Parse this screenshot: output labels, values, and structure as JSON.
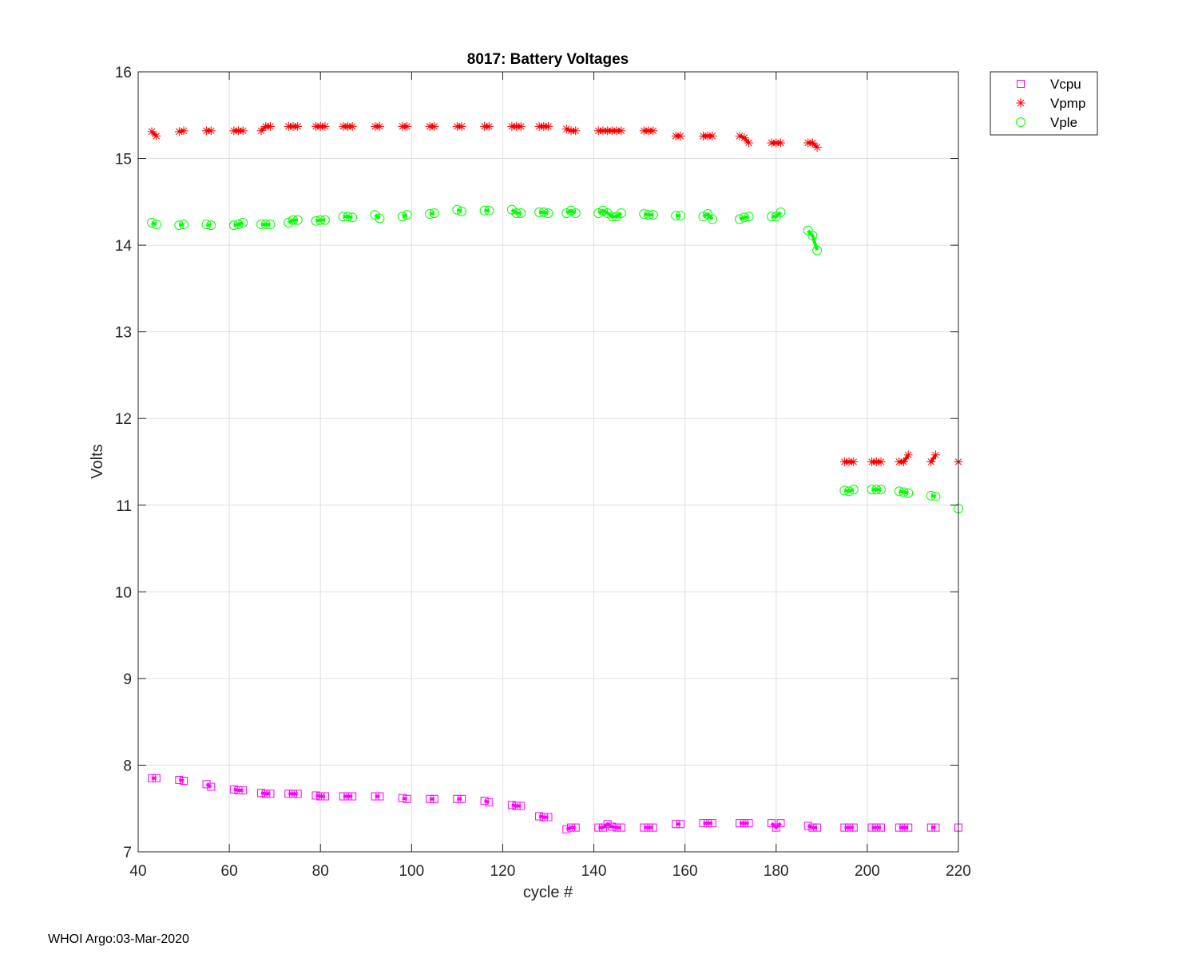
{
  "footer": "WHOI Argo:03-Mar-2020",
  "chart_data": {
    "type": "line",
    "title": "8017: Battery Voltages",
    "xlabel": "cycle #",
    "ylabel": "Volts",
    "xlim": [
      40,
      220
    ],
    "ylim": [
      7,
      16
    ],
    "xticks": [
      40,
      60,
      80,
      100,
      120,
      140,
      160,
      180,
      200,
      220
    ],
    "yticks": [
      7,
      8,
      9,
      10,
      11,
      12,
      13,
      14,
      15,
      16
    ],
    "grid": true,
    "legend_position": "outside-top-right",
    "series": [
      {
        "name": "Vcpu",
        "color": "#ff00ff",
        "marker": "square",
        "points": [
          [
            43,
            7.85
          ],
          [
            44,
            7.85
          ],
          [
            49,
            7.83
          ],
          [
            50,
            7.82
          ],
          [
            55,
            7.78
          ],
          [
            56,
            7.75
          ],
          [
            61,
            7.72
          ],
          [
            62,
            7.71
          ],
          [
            63,
            7.71
          ],
          [
            67,
            7.68
          ],
          [
            68,
            7.67
          ],
          [
            69,
            7.67
          ],
          [
            73,
            7.67
          ],
          [
            74,
            7.67
          ],
          [
            75,
            7.67
          ],
          [
            79,
            7.65
          ],
          [
            80,
            7.64
          ],
          [
            81,
            7.64
          ],
          [
            85,
            7.64
          ],
          [
            86,
            7.64
          ],
          [
            87,
            7.64
          ],
          [
            92,
            7.64
          ],
          [
            93,
            7.64
          ],
          [
            98,
            7.62
          ],
          [
            99,
            7.61
          ],
          [
            104,
            7.61
          ],
          [
            105,
            7.61
          ],
          [
            110,
            7.61
          ],
          [
            111,
            7.61
          ],
          [
            116,
            7.59
          ],
          [
            117,
            7.57
          ],
          [
            122,
            7.54
          ],
          [
            123,
            7.53
          ],
          [
            124,
            7.53
          ],
          [
            128,
            7.41
          ],
          [
            129,
            7.4
          ],
          [
            130,
            7.4
          ],
          [
            134,
            7.26
          ],
          [
            135,
            7.28
          ],
          [
            136,
            7.28
          ],
          [
            141,
            7.28
          ],
          [
            142,
            7.28
          ],
          [
            143,
            7.32
          ],
          [
            144,
            7.29
          ],
          [
            145,
            7.28
          ],
          [
            146,
            7.28
          ],
          [
            151,
            7.28
          ],
          [
            152,
            7.28
          ],
          [
            153,
            7.28
          ],
          [
            158,
            7.32
          ],
          [
            159,
            7.32
          ],
          [
            164,
            7.33
          ],
          [
            165,
            7.33
          ],
          [
            166,
            7.33
          ],
          [
            172,
            7.33
          ],
          [
            173,
            7.33
          ],
          [
            174,
            7.33
          ],
          [
            179,
            7.33
          ],
          [
            180,
            7.28
          ],
          [
            181,
            7.33
          ],
          [
            187,
            7.3
          ],
          [
            188,
            7.28
          ],
          [
            189,
            7.28
          ],
          [
            195,
            7.28
          ],
          [
            196,
            7.28
          ],
          [
            197,
            7.28
          ],
          [
            201,
            7.28
          ],
          [
            202,
            7.28
          ],
          [
            203,
            7.28
          ],
          [
            207,
            7.28
          ],
          [
            208,
            7.28
          ],
          [
            209,
            7.28
          ],
          [
            214,
            7.28
          ],
          [
            215,
            7.28
          ],
          [
            220,
            7.28
          ]
        ]
      },
      {
        "name": "Vpmp",
        "color": "#ff0000",
        "marker": "asterisk",
        "points": [
          [
            43,
            15.31
          ],
          [
            44,
            15.26
          ],
          [
            49,
            15.31
          ],
          [
            50,
            15.32
          ],
          [
            55,
            15.32
          ],
          [
            56,
            15.32
          ],
          [
            61,
            15.32
          ],
          [
            62,
            15.32
          ],
          [
            63,
            15.32
          ],
          [
            67,
            15.32
          ],
          [
            68,
            15.37
          ],
          [
            69,
            15.37
          ],
          [
            73,
            15.37
          ],
          [
            74,
            15.37
          ],
          [
            75,
            15.37
          ],
          [
            79,
            15.37
          ],
          [
            80,
            15.37
          ],
          [
            81,
            15.37
          ],
          [
            85,
            15.37
          ],
          [
            86,
            15.37
          ],
          [
            87,
            15.37
          ],
          [
            92,
            15.37
          ],
          [
            93,
            15.37
          ],
          [
            98,
            15.37
          ],
          [
            99,
            15.37
          ],
          [
            104,
            15.37
          ],
          [
            105,
            15.37
          ],
          [
            110,
            15.37
          ],
          [
            111,
            15.37
          ],
          [
            116,
            15.37
          ],
          [
            117,
            15.37
          ],
          [
            122,
            15.37
          ],
          [
            123,
            15.37
          ],
          [
            124,
            15.37
          ],
          [
            128,
            15.37
          ],
          [
            129,
            15.37
          ],
          [
            130,
            15.37
          ],
          [
            134,
            15.34
          ],
          [
            135,
            15.32
          ],
          [
            136,
            15.32
          ],
          [
            141,
            15.32
          ],
          [
            142,
            15.32
          ],
          [
            143,
            15.32
          ],
          [
            144,
            15.32
          ],
          [
            145,
            15.32
          ],
          [
            146,
            15.32
          ],
          [
            151,
            15.32
          ],
          [
            152,
            15.32
          ],
          [
            153,
            15.32
          ],
          [
            158,
            15.26
          ],
          [
            159,
            15.26
          ],
          [
            164,
            15.26
          ],
          [
            165,
            15.26
          ],
          [
            166,
            15.26
          ],
          [
            172,
            15.26
          ],
          [
            173,
            15.24
          ],
          [
            174,
            15.18
          ],
          [
            179,
            15.18
          ],
          [
            180,
            15.18
          ],
          [
            181,
            15.18
          ],
          [
            187,
            15.18
          ],
          [
            188,
            15.18
          ],
          [
            189,
            15.13
          ],
          [
            195,
            11.5
          ],
          [
            196,
            11.5
          ],
          [
            197,
            11.5
          ],
          [
            201,
            11.5
          ],
          [
            202,
            11.5
          ],
          [
            203,
            11.5
          ],
          [
            207,
            11.5
          ],
          [
            208,
            11.5
          ],
          [
            209,
            11.58
          ],
          [
            214,
            11.5
          ],
          [
            215,
            11.58
          ],
          [
            220,
            11.5
          ]
        ]
      },
      {
        "name": "Vple",
        "color": "#00ff00",
        "marker": "circle",
        "points": [
          [
            43,
            14.26
          ],
          [
            44,
            14.24
          ],
          [
            49,
            14.23
          ],
          [
            50,
            14.24
          ],
          [
            55,
            14.24
          ],
          [
            56,
            14.23
          ],
          [
            61,
            14.23
          ],
          [
            62,
            14.24
          ],
          [
            63,
            14.26
          ],
          [
            67,
            14.24
          ],
          [
            68,
            14.24
          ],
          [
            69,
            14.24
          ],
          [
            73,
            14.26
          ],
          [
            74,
            14.29
          ],
          [
            75,
            14.29
          ],
          [
            79,
            14.28
          ],
          [
            80,
            14.29
          ],
          [
            81,
            14.29
          ],
          [
            85,
            14.33
          ],
          [
            86,
            14.33
          ],
          [
            87,
            14.32
          ],
          [
            92,
            14.35
          ],
          [
            93,
            14.31
          ],
          [
            98,
            14.33
          ],
          [
            99,
            14.35
          ],
          [
            104,
            14.36
          ],
          [
            105,
            14.37
          ],
          [
            110,
            14.41
          ],
          [
            111,
            14.39
          ],
          [
            116,
            14.4
          ],
          [
            117,
            14.4
          ],
          [
            122,
            14.41
          ],
          [
            123,
            14.37
          ],
          [
            124,
            14.37
          ],
          [
            128,
            14.38
          ],
          [
            129,
            14.38
          ],
          [
            130,
            14.37
          ],
          [
            134,
            14.37
          ],
          [
            135,
            14.4
          ],
          [
            136,
            14.37
          ],
          [
            141,
            14.37
          ],
          [
            142,
            14.4
          ],
          [
            143,
            14.37
          ],
          [
            144,
            14.33
          ],
          [
            145,
            14.33
          ],
          [
            146,
            14.37
          ],
          [
            151,
            14.36
          ],
          [
            152,
            14.35
          ],
          [
            153,
            14.35
          ],
          [
            158,
            14.34
          ],
          [
            159,
            14.34
          ],
          [
            164,
            14.33
          ],
          [
            165,
            14.36
          ],
          [
            166,
            14.3
          ],
          [
            172,
            14.3
          ],
          [
            173,
            14.32
          ],
          [
            174,
            14.33
          ],
          [
            179,
            14.33
          ],
          [
            180,
            14.33
          ],
          [
            181,
            14.38
          ],
          [
            187,
            14.17
          ],
          [
            188,
            14.11
          ],
          [
            189,
            13.94
          ],
          [
            195,
            11.17
          ],
          [
            196,
            11.16
          ],
          [
            197,
            11.18
          ],
          [
            201,
            11.18
          ],
          [
            202,
            11.18
          ],
          [
            203,
            11.18
          ],
          [
            207,
            11.16
          ],
          [
            208,
            11.15
          ],
          [
            209,
            11.14
          ],
          [
            214,
            11.11
          ],
          [
            215,
            11.1
          ],
          [
            220,
            10.96
          ]
        ]
      }
    ]
  }
}
